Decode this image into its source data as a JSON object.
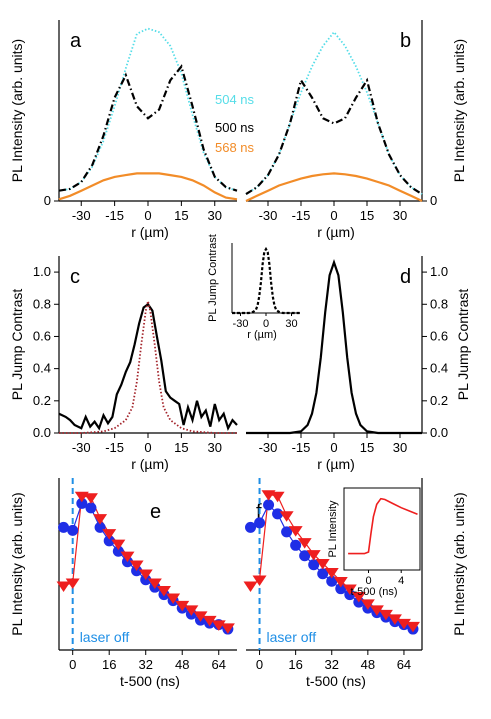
{
  "chart_data": [
    {
      "panel": "a",
      "type": "line",
      "xlabel": "r (µm)",
      "ylabel": "PL Intensity (arb. units)",
      "xlim": [
        -40,
        40
      ],
      "ylim": [
        0,
        1.05
      ],
      "xticks": [
        "-30",
        "-15",
        "0",
        "15",
        "30"
      ],
      "yticks": [
        "0"
      ],
      "series": [
        {
          "name": "504 ns",
          "color": "#55dde8",
          "style": "dotted",
          "x": [
            -40,
            -35,
            -30,
            -25,
            -20,
            -15,
            -10,
            -5,
            0,
            5,
            10,
            15,
            20,
            25,
            30,
            35,
            40
          ],
          "y": [
            0.06,
            0.07,
            0.11,
            0.2,
            0.35,
            0.55,
            0.77,
            0.97,
            1.0,
            0.98,
            0.9,
            0.74,
            0.5,
            0.28,
            0.14,
            0.08,
            0.06
          ]
        },
        {
          "name": "500 ns",
          "color": "#000000",
          "style": "dashdot",
          "x": [
            -40,
            -35,
            -30,
            -25,
            -20,
            -15,
            -10,
            -5,
            0,
            5,
            10,
            15,
            20,
            25,
            30,
            35,
            40
          ],
          "y": [
            0.06,
            0.07,
            0.11,
            0.21,
            0.38,
            0.6,
            0.73,
            0.55,
            0.48,
            0.53,
            0.7,
            0.78,
            0.55,
            0.3,
            0.14,
            0.08,
            0.06
          ]
        },
        {
          "name": "568 ns",
          "color": "#f28c28",
          "style": "solid",
          "x": [
            -40,
            -35,
            -30,
            -25,
            -20,
            -15,
            -10,
            -5,
            0,
            5,
            10,
            15,
            20,
            25,
            30,
            35,
            40
          ],
          "y": [
            0.01,
            0.03,
            0.06,
            0.09,
            0.12,
            0.14,
            0.15,
            0.16,
            0.16,
            0.16,
            0.15,
            0.14,
            0.12,
            0.09,
            0.05,
            0.02,
            0.01
          ]
        }
      ]
    },
    {
      "panel": "b",
      "type": "line",
      "xlabel": "r (µm)",
      "ylabel": "PL Intensity (arb. units)",
      "xlim": [
        -40,
        40
      ],
      "ylim": [
        0,
        1.05
      ],
      "xticks": [
        "-30",
        "-15",
        "0",
        "15",
        "30"
      ],
      "yticks": [
        "0"
      ],
      "series": [
        {
          "color": "#55dde8",
          "style": "dotted",
          "x": [
            -40,
            -35,
            -30,
            -25,
            -20,
            -15,
            -10,
            -5,
            0,
            5,
            10,
            15,
            20,
            25,
            30,
            35,
            40
          ],
          "y": [
            0.04,
            0.08,
            0.15,
            0.27,
            0.45,
            0.63,
            0.78,
            0.9,
            0.98,
            0.9,
            0.78,
            0.63,
            0.45,
            0.27,
            0.15,
            0.08,
            0.04
          ]
        },
        {
          "color": "#000000",
          "style": "dashdot",
          "x": [
            -40,
            -35,
            -30,
            -25,
            -20,
            -15,
            -10,
            -5,
            0,
            5,
            10,
            15,
            20,
            25,
            30,
            35,
            40
          ],
          "y": [
            0.04,
            0.08,
            0.15,
            0.27,
            0.45,
            0.7,
            0.6,
            0.48,
            0.45,
            0.48,
            0.6,
            0.7,
            0.45,
            0.27,
            0.15,
            0.08,
            0.04
          ]
        },
        {
          "color": "#f28c28",
          "style": "solid",
          "x": [
            -40,
            -35,
            -30,
            -25,
            -20,
            -15,
            -10,
            -5,
            0,
            5,
            10,
            15,
            20,
            25,
            30,
            35,
            40
          ],
          "y": [
            0.0,
            0.03,
            0.06,
            0.09,
            0.11,
            0.13,
            0.145,
            0.155,
            0.16,
            0.155,
            0.145,
            0.13,
            0.11,
            0.09,
            0.06,
            0.03,
            0.0
          ]
        }
      ]
    },
    {
      "panel": "c",
      "type": "line",
      "xlabel": "r (µm)",
      "ylabel": "PL Jump Contrast",
      "xlim": [
        -40,
        40
      ],
      "ylim": [
        0,
        1.1
      ],
      "xticks": [
        "-30",
        "-15",
        "0",
        "15",
        "30"
      ],
      "yticks": [
        "0.0",
        "0.2",
        "0.4",
        "0.6",
        "0.8",
        "1.0"
      ],
      "series": [
        {
          "color": "#000000",
          "style": "solid",
          "x": [
            -40,
            -37,
            -35,
            -33,
            -30,
            -28,
            -26,
            -24,
            -22,
            -20,
            -18,
            -16,
            -14,
            -12,
            -10,
            -8,
            -6,
            -4,
            -2,
            0,
            2,
            4,
            6,
            8,
            10,
            12,
            14,
            16,
            18,
            20,
            22,
            24,
            26,
            28,
            30,
            32,
            34,
            36,
            38,
            40
          ],
          "y": [
            0.12,
            0.1,
            0.08,
            0.05,
            0.03,
            0.1,
            0.04,
            0.07,
            0.03,
            0.11,
            0.06,
            0.1,
            0.24,
            0.3,
            0.38,
            0.44,
            0.55,
            0.68,
            0.78,
            0.8,
            0.76,
            0.6,
            0.45,
            0.26,
            0.22,
            0.2,
            0.18,
            0.05,
            0.16,
            0.08,
            0.2,
            0.1,
            0.14,
            0.04,
            0.18,
            0.08,
            0.12,
            0.03,
            0.08,
            0.05
          ]
        },
        {
          "color": "#a3232a",
          "style": "dotted",
          "x": [
            -40,
            -30,
            -20,
            -15,
            -10,
            -7,
            -5,
            -3,
            -1,
            0,
            1,
            3,
            5,
            7,
            10,
            15,
            20,
            30,
            40
          ],
          "y": [
            0.0,
            0.0,
            0.01,
            0.03,
            0.08,
            0.16,
            0.32,
            0.55,
            0.76,
            0.82,
            0.76,
            0.55,
            0.32,
            0.16,
            0.08,
            0.03,
            0.01,
            0.0,
            0.0
          ]
        }
      ],
      "inset": {
        "xlabel": "r (µm)",
        "ylabel": "PL Jump Contrast",
        "xticks": [
          "-30",
          "0",
          "30"
        ],
        "x": [
          -40,
          -30,
          -20,
          -15,
          -12,
          -10,
          -8,
          -6,
          -4,
          -2,
          0,
          2,
          4,
          6,
          8,
          10,
          12,
          15,
          20,
          30,
          40
        ],
        "y": [
          0.0,
          0.0,
          0.0,
          0.02,
          0.05,
          0.12,
          0.27,
          0.5,
          0.8,
          1.0,
          1.05,
          1.0,
          0.8,
          0.5,
          0.27,
          0.12,
          0.05,
          0.02,
          0.0,
          0.0,
          0.0
        ]
      }
    },
    {
      "panel": "d",
      "type": "line",
      "xlabel": "r (µm)",
      "ylabel": "PL Jump Contrast",
      "xlim": [
        -40,
        40
      ],
      "ylim": [
        0,
        1.1
      ],
      "xticks": [
        "-30",
        "-15",
        "0",
        "15",
        "30"
      ],
      "yticks": [
        "0.0",
        "0.2",
        "0.4",
        "0.6",
        "0.8",
        "1.0"
      ],
      "series": [
        {
          "color": "#000000",
          "style": "solid",
          "x": [
            -40,
            -20,
            -15,
            -12,
            -10,
            -8,
            -6,
            -4,
            -2,
            0,
            2,
            4,
            6,
            8,
            10,
            12,
            15,
            20,
            40
          ],
          "y": [
            0.0,
            0.0,
            0.01,
            0.05,
            0.12,
            0.25,
            0.47,
            0.75,
            0.98,
            1.06,
            0.98,
            0.75,
            0.47,
            0.25,
            0.12,
            0.05,
            0.01,
            0.0,
            0.0
          ]
        }
      ]
    },
    {
      "panel": "e",
      "type": "scatter",
      "xlabel": "t-500 (ns)",
      "ylabel": "PL Intensity (arb. units)",
      "xlim": [
        -6,
        72
      ],
      "ylim": [
        0,
        1.15
      ],
      "xticks": [
        "0",
        "16",
        "32",
        "48",
        "64"
      ],
      "annotation": "laser off",
      "series": [
        {
          "color": "#1f2ee6",
          "marker": "circle",
          "x": [
            -4,
            0,
            4,
            8,
            12,
            16,
            20,
            24,
            28,
            32,
            36,
            40,
            44,
            48,
            52,
            56,
            60,
            64,
            68
          ],
          "y": [
            0.82,
            0.8,
            0.98,
            0.95,
            0.82,
            0.73,
            0.66,
            0.59,
            0.53,
            0.47,
            0.42,
            0.37,
            0.33,
            0.28,
            0.24,
            0.2,
            0.18,
            0.17,
            0.14
          ]
        },
        {
          "color": "#ee1f1f",
          "marker": "triangle-down",
          "x": [
            -4,
            0,
            4,
            8,
            12,
            16,
            20,
            24,
            28,
            32,
            36,
            40,
            44,
            48,
            52,
            56,
            60,
            64,
            68
          ],
          "y": [
            0.43,
            0.45,
            1.03,
            1.02,
            0.88,
            0.78,
            0.71,
            0.63,
            0.57,
            0.51,
            0.45,
            0.4,
            0.35,
            0.3,
            0.27,
            0.23,
            0.2,
            0.17,
            0.15
          ]
        }
      ]
    },
    {
      "panel": "f",
      "type": "scatter",
      "xlabel": "t-500 (ns)",
      "ylabel": "PL Intensity (arb. units)",
      "xlim": [
        -6,
        72
      ],
      "ylim": [
        0,
        1.15
      ],
      "xticks": [
        "0",
        "16",
        "32",
        "48",
        "64"
      ],
      "annotation": "laser off",
      "series": [
        {
          "color": "#1f2ee6",
          "marker": "circle",
          "x": [
            -4,
            0,
            4,
            8,
            12,
            16,
            20,
            24,
            28,
            32,
            36,
            40,
            44,
            48,
            52,
            56,
            60,
            64,
            68
          ],
          "y": [
            0.82,
            0.85,
            0.97,
            0.91,
            0.79,
            0.7,
            0.63,
            0.57,
            0.51,
            0.46,
            0.41,
            0.37,
            0.32,
            0.28,
            0.25,
            0.22,
            0.19,
            0.17,
            0.14
          ]
        },
        {
          "color": "#ee1f1f",
          "marker": "triangle-down",
          "x": [
            -4,
            0,
            4,
            8,
            12,
            16,
            20,
            24,
            28,
            32,
            36,
            40,
            44,
            48,
            52,
            56,
            60,
            64,
            68
          ],
          "y": [
            0.43,
            0.47,
            1.04,
            1.03,
            0.9,
            0.8,
            0.72,
            0.64,
            0.58,
            0.52,
            0.46,
            0.41,
            0.36,
            0.31,
            0.27,
            0.24,
            0.21,
            0.18,
            0.16
          ]
        }
      ],
      "inset": {
        "xlabel": "t-500 (ns)",
        "ylabel": "PL Intensity",
        "xticks": [
          "0",
          "4"
        ],
        "x": [
          -2.5,
          -1,
          -0.5,
          0,
          0.3,
          0.6,
          1,
          1.5,
          2,
          3,
          4,
          5,
          6
        ],
        "y": [
          0.3,
          0.3,
          0.3,
          0.32,
          0.55,
          0.75,
          0.9,
          0.97,
          0.96,
          0.91,
          0.86,
          0.82,
          0.78
        ]
      }
    }
  ]
}
